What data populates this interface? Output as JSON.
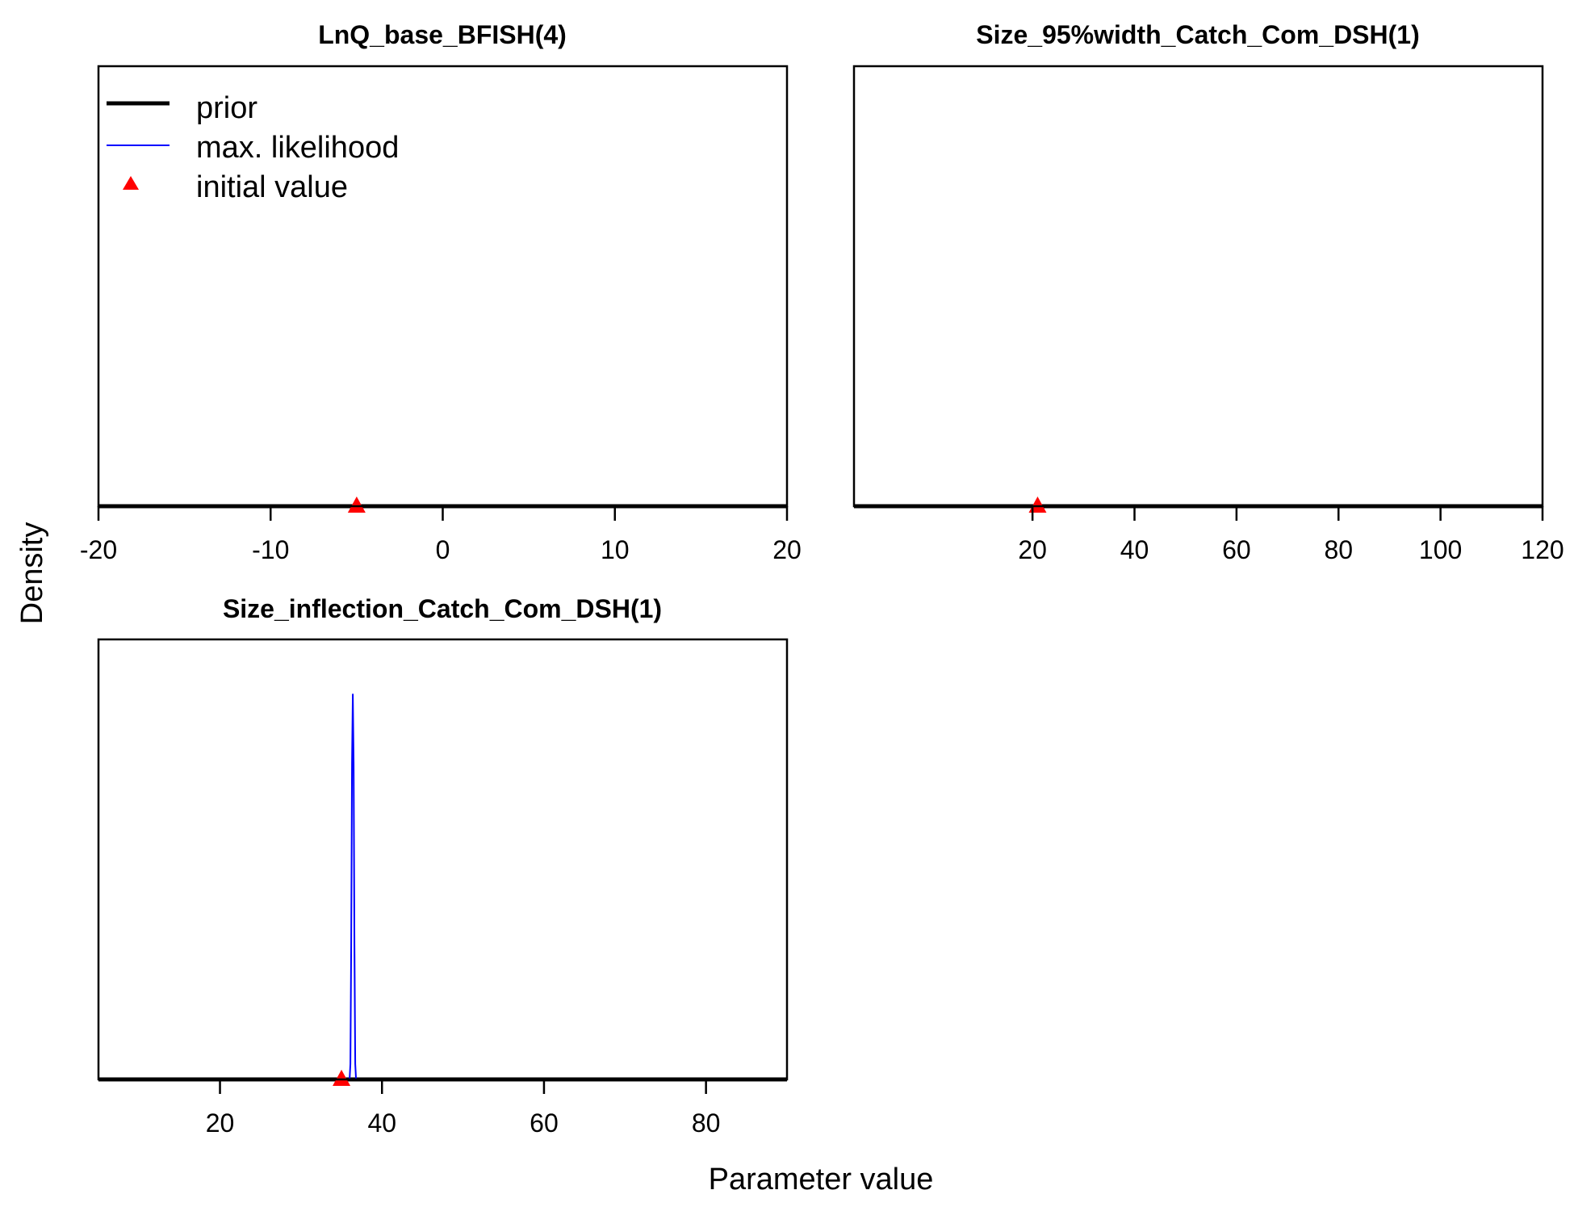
{
  "figure": {
    "ylabel": "Density",
    "xlabel": "Parameter value",
    "legend": {
      "placement": "top-left of first panel",
      "entries": [
        {
          "label": "prior",
          "color": "#000000",
          "style": "thick-line"
        },
        {
          "label": "max. likelihood",
          "color": "#0000ff",
          "style": "thin-line"
        },
        {
          "label": "initial value",
          "color": "#ff0000",
          "style": "triangle"
        }
      ]
    }
  },
  "chart_data": [
    {
      "type": "line",
      "title": "LnQ_base_BFISH(4)",
      "xlim": [
        -20,
        20
      ],
      "xticks": [
        -20,
        -10,
        0,
        10,
        20
      ],
      "xtick_labels": [
        "-20",
        "-10",
        "0",
        "10",
        "20"
      ],
      "series": [
        {
          "name": "prior",
          "color": "#000000",
          "x": [
            -20,
            20
          ],
          "y": [
            0,
            0
          ]
        }
      ],
      "initial_value": -5,
      "ymax": 1
    },
    {
      "type": "line",
      "title": "Size_95%width_Catch_Com_DSH(1)",
      "xlim": [
        -15,
        120
      ],
      "xticks": [
        20,
        40,
        60,
        80,
        100,
        120
      ],
      "xtick_labels": [
        "20",
        "40",
        "60",
        "80",
        "100",
        "120"
      ],
      "series": [
        {
          "name": "prior",
          "color": "#000000",
          "x": [
            -15,
            120
          ],
          "y": [
            0,
            0
          ]
        }
      ],
      "initial_value": 21,
      "ymax": 1
    },
    {
      "type": "line",
      "title": "Size_inflection_Catch_Com_DSH(1)",
      "xlim": [
        5,
        90
      ],
      "xticks": [
        20,
        40,
        60,
        80
      ],
      "xtick_labels": [
        "20",
        "40",
        "60",
        "80"
      ],
      "series": [
        {
          "name": "prior",
          "color": "#000000",
          "x": [
            5,
            90
          ],
          "y": [
            0,
            0
          ]
        },
        {
          "name": "max. likelihood",
          "color": "#0000ff",
          "x": [
            36.0,
            36.1,
            36.2,
            36.3,
            36.4,
            36.5,
            36.6,
            36.7,
            36.8
          ],
          "y": [
            0,
            0.04,
            0.35,
            0.82,
            1.0,
            0.82,
            0.35,
            0.04,
            0
          ]
        }
      ],
      "initial_value": 35,
      "ymax": 1.08
    }
  ]
}
